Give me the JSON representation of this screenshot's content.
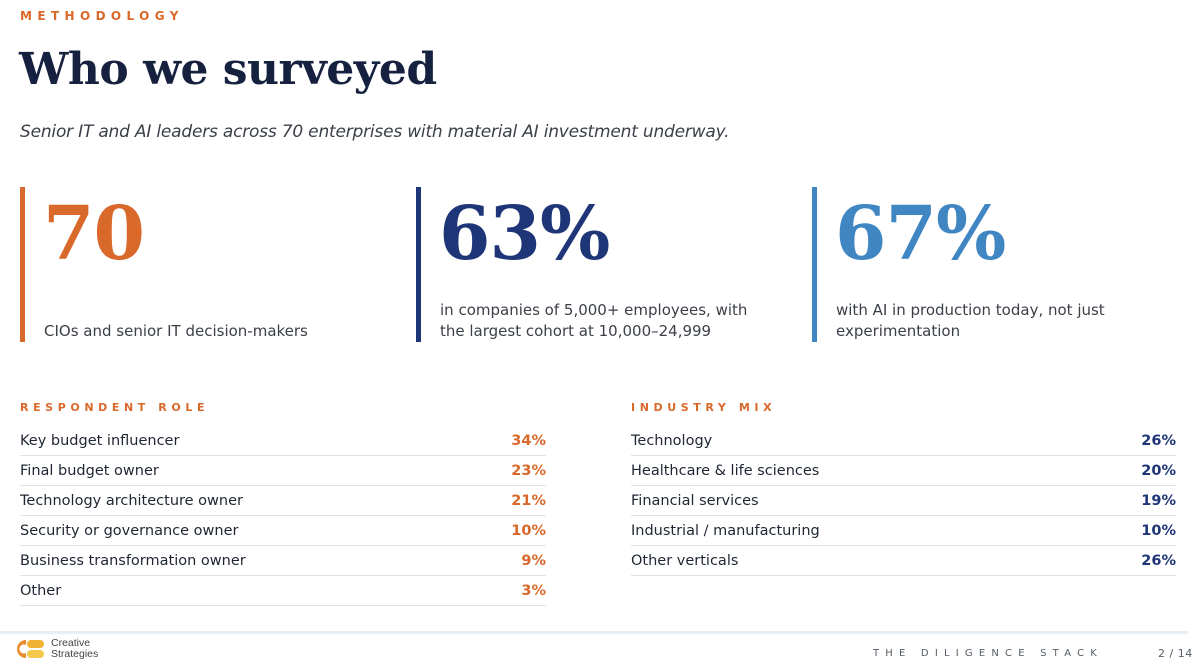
{
  "header": {
    "eyebrow": "METHODOLOGY",
    "title": "Who we surveyed",
    "subtitle": "Senior IT and AI leaders across 70 enterprises with material AI investment underway."
  },
  "stats": [
    {
      "value": "70",
      "description": "CIOs and senior IT decision-makers",
      "color": "#d9682b"
    },
    {
      "value": "63%",
      "description": "in companies of 5,000+ employees, with the largest cohort at 10,000–24,999",
      "color": "#1e3577"
    },
    {
      "value": "67%",
      "description": "with AI in production today, not just experimentation",
      "color": "#3f86c2"
    }
  ],
  "respondent_role": {
    "label": "RESPONDENT ROLE",
    "rows": [
      {
        "label": "Key budget influencer",
        "value": "34%"
      },
      {
        "label": "Final budget owner",
        "value": "23%"
      },
      {
        "label": "Technology architecture owner",
        "value": "21%"
      },
      {
        "label": "Security or governance owner",
        "value": "10%"
      },
      {
        "label": "Business transformation owner",
        "value": "9%"
      },
      {
        "label": "Other",
        "value": "3%"
      }
    ]
  },
  "industry_mix": {
    "label": "INDUSTRY MIX",
    "rows": [
      {
        "label": "Technology",
        "value": "26%"
      },
      {
        "label": "Healthcare & life sciences",
        "value": "20%"
      },
      {
        "label": "Financial services",
        "value": "19%"
      },
      {
        "label": "Industrial / manufacturing",
        "value": "10%"
      },
      {
        "label": "Other verticals",
        "value": "26%"
      }
    ]
  },
  "footer": {
    "logo_line1": "Creative",
    "logo_line2": "Strategies",
    "brand": "THE DILIGENCE STACK",
    "page": "2 / 14"
  },
  "colors": {
    "accent_orange": "#d9682b",
    "navy": "#1e3577",
    "blue": "#3f86c2"
  }
}
